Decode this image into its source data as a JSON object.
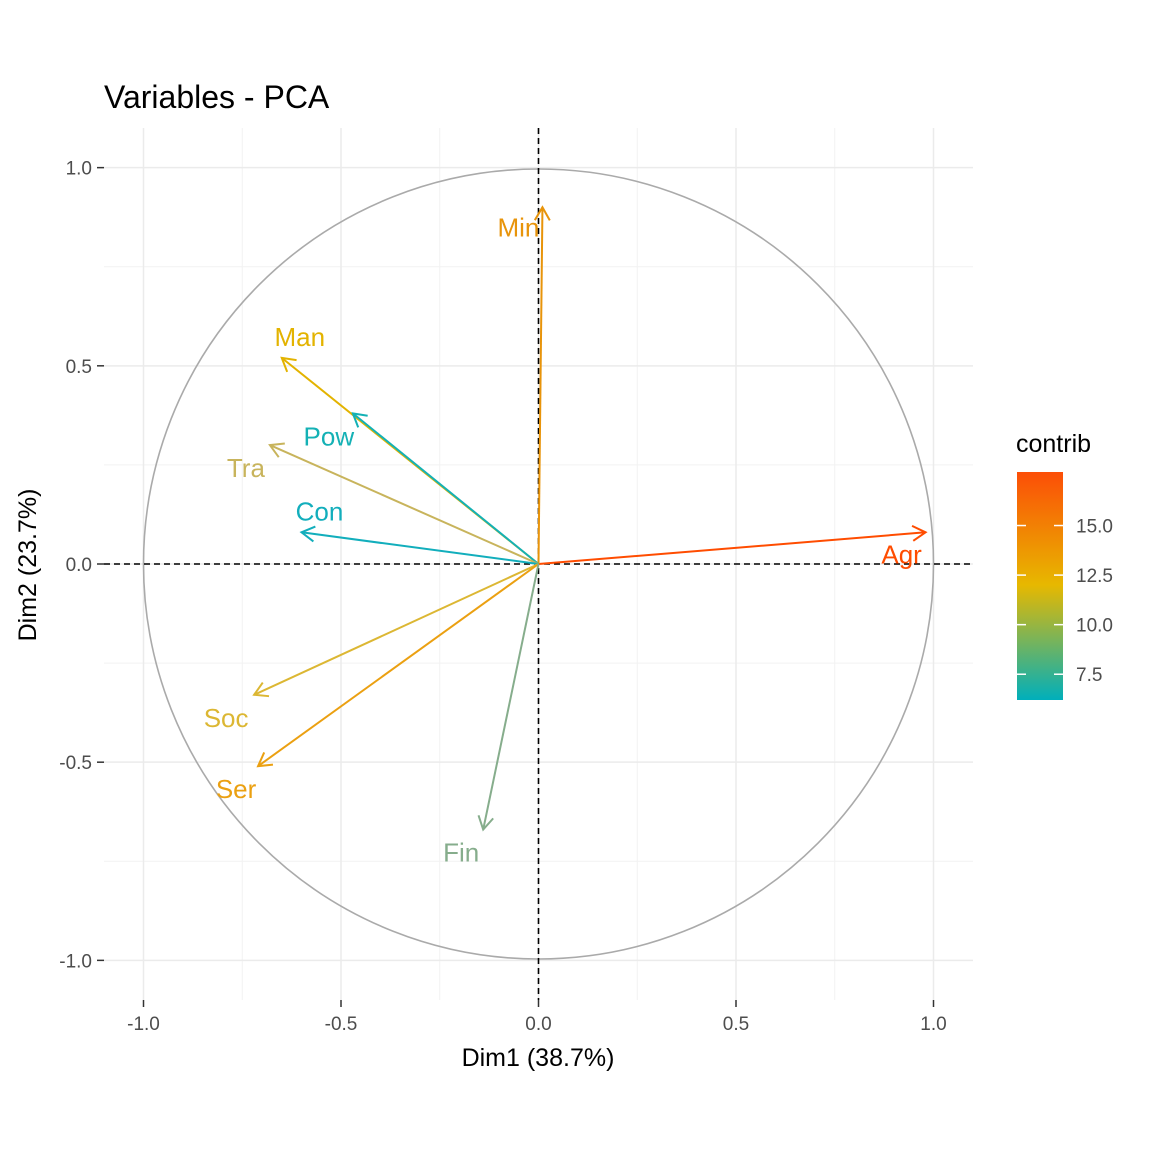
{
  "chart_data": {
    "type": "scatter",
    "subtype": "pca-variable-correlation-circle",
    "title": "Variables - PCA",
    "xlabel": "Dim1 (38.7%)",
    "ylabel": "Dim2 (23.7%)",
    "xlim": [
      -1.1,
      1.1
    ],
    "ylim": [
      -1.1,
      1.1
    ],
    "xticks": [
      -1.0,
      -0.5,
      0.0,
      0.5,
      1.0
    ],
    "yticks": [
      -1.0,
      -0.5,
      0.0,
      0.5,
      1.0
    ],
    "xtick_labels": [
      "-1.0",
      "-0.5",
      "0.0",
      "0.5",
      "1.0"
    ],
    "ytick_labels": [
      "-1.0",
      "-0.5",
      "0.0",
      "0.5",
      "1.0"
    ],
    "grid": true,
    "unit_circle": true,
    "reference_lines": {
      "x": 0,
      "y": 0,
      "style": "dashed"
    },
    "variables": [
      {
        "name": "Agr",
        "x": 0.98,
        "y": 0.08,
        "contrib": 17.5,
        "color": "#ff4c00"
      },
      {
        "name": "Min",
        "x": 0.01,
        "y": 0.9,
        "contrib": 13.6,
        "color": "#e8940a"
      },
      {
        "name": "Man",
        "x": -0.65,
        "y": 0.52,
        "contrib": 12.3,
        "color": "#e3b300"
      },
      {
        "name": "Pow",
        "x": -0.47,
        "y": 0.38,
        "contrib": 6.4,
        "color": "#14b1b5"
      },
      {
        "name": "Tra",
        "x": -0.68,
        "y": 0.3,
        "contrib": 10.3,
        "color": "#c8b45c"
      },
      {
        "name": "Con",
        "x": -0.6,
        "y": 0.08,
        "contrib": 6.5,
        "color": "#12aebc"
      },
      {
        "name": "Soc",
        "x": -0.72,
        "y": -0.33,
        "contrib": 11.2,
        "color": "#dcb733"
      },
      {
        "name": "Ser",
        "x": -0.71,
        "y": -0.51,
        "contrib": 13.1,
        "color": "#eba011"
      },
      {
        "name": "Fin",
        "x": -0.14,
        "y": -0.67,
        "contrib": 8.2,
        "color": "#86ad8c"
      }
    ],
    "legend": {
      "title": "contrib",
      "position": "right",
      "range": [
        6.2,
        17.7
      ],
      "ticks": [
        7.5,
        10.0,
        12.5,
        15.0
      ],
      "tick_labels": [
        "7.5",
        "10.0",
        "12.5",
        "15.0"
      ],
      "gradient": [
        {
          "value": 6.2,
          "color": "#00afbb"
        },
        {
          "value": 12.0,
          "color": "#e7b800"
        },
        {
          "value": 17.7,
          "color": "#fc4e07"
        }
      ]
    }
  }
}
